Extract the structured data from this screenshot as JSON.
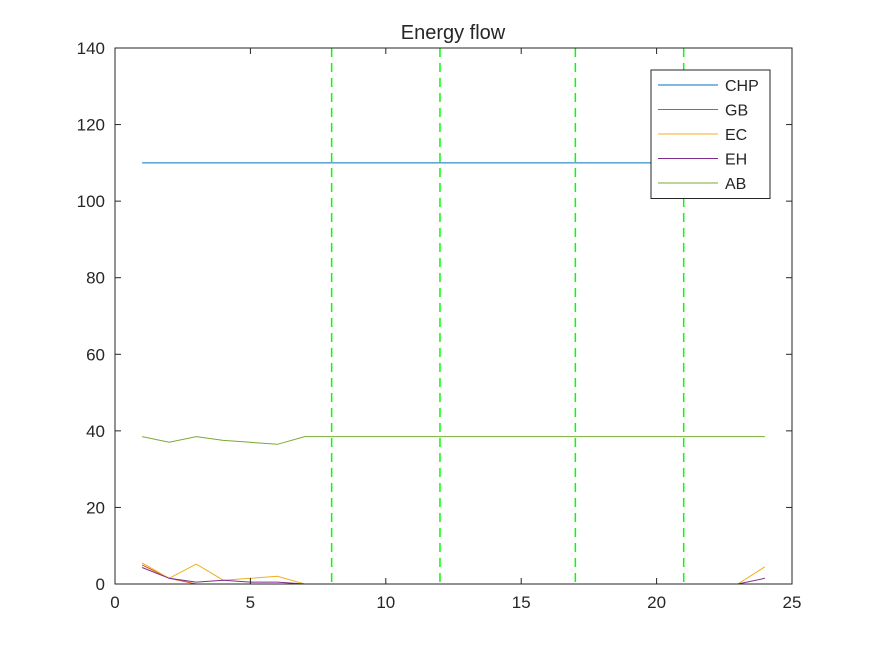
{
  "chart_data": {
    "type": "line",
    "title": "Energy flow",
    "xlabel": "",
    "ylabel": "",
    "xlim": [
      0,
      25
    ],
    "ylim": [
      0,
      140
    ],
    "x_ticks": [
      0,
      5,
      10,
      15,
      20,
      25
    ],
    "y_ticks": [
      0,
      20,
      40,
      60,
      80,
      100,
      120,
      140
    ],
    "grid": false,
    "legend_position": "top-right",
    "x": [
      1,
      2,
      3,
      4,
      5,
      6,
      7,
      8,
      9,
      10,
      11,
      12,
      13,
      14,
      15,
      16,
      17,
      18,
      19,
      20,
      21,
      22,
      23,
      24
    ],
    "series": [
      {
        "name": "CHP",
        "color": "#0072BD",
        "values": [
          110,
          110,
          110,
          110,
          110,
          110,
          110,
          110,
          110,
          110,
          110,
          110,
          110,
          110,
          110,
          110,
          110,
          110,
          110,
          110,
          110,
          110,
          110,
          110
        ]
      },
      {
        "name": "GB",
        "color": "#D95319",
        "values": [
          5,
          1.5,
          0,
          0,
          0,
          0,
          0,
          0,
          0,
          0,
          0,
          0,
          0,
          0,
          0,
          0,
          0,
          0,
          0,
          0,
          0,
          0,
          0,
          0
        ]
      },
      {
        "name": "EC",
        "color": "#EDB120",
        "values": [
          5.5,
          1.5,
          5.2,
          1,
          1.5,
          2,
          0,
          0,
          0,
          0,
          0,
          0,
          0,
          0,
          0,
          0,
          0,
          0,
          0,
          0,
          0,
          0,
          0,
          4.5
        ]
      },
      {
        "name": "EH",
        "color": "#7E2F8E",
        "values": [
          4.3,
          1.5,
          0.5,
          1,
          0.5,
          0.5,
          0,
          0,
          0,
          0,
          0,
          0,
          0,
          0,
          0,
          0,
          0,
          0,
          0,
          0,
          0,
          0,
          0,
          1.5
        ]
      },
      {
        "name": "AB",
        "color": "#77AC30",
        "values": [
          38.5,
          37,
          38.5,
          37.5,
          37,
          36.5,
          38.5,
          38.5,
          38.5,
          38.5,
          38.5,
          38.5,
          38.5,
          38.5,
          38.5,
          38.5,
          38.5,
          38.5,
          38.5,
          38.5,
          38.5,
          38.5,
          38.5,
          38.5
        ]
      }
    ],
    "vertical_lines": {
      "color": "#00FF00",
      "style": "dashed",
      "x": [
        8,
        12,
        17,
        21
      ]
    }
  }
}
